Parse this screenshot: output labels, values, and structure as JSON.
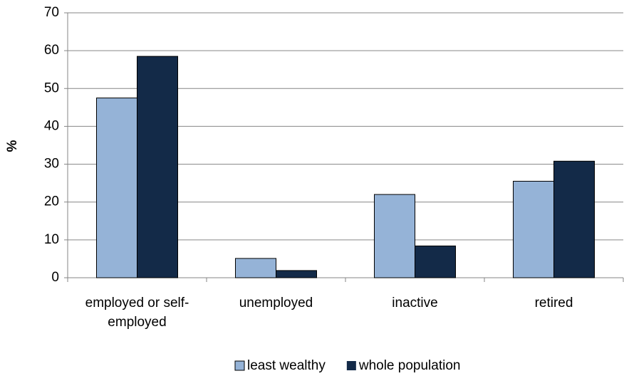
{
  "chart_data": {
    "type": "bar",
    "y_label": "%",
    "categories": [
      "employed or self-employed",
      "unemployed",
      "inactive",
      "retired"
    ],
    "series": [
      {
        "name": "least wealthy",
        "color": "#95b3d7",
        "values": [
          47.5,
          5.1,
          22,
          25.5
        ]
      },
      {
        "name": "whole population",
        "color": "#132a48",
        "values": [
          58.5,
          1.9,
          8.4,
          30.8
        ]
      }
    ],
    "ylim": [
      0,
      70
    ],
    "yticks": [
      0,
      10,
      20,
      30,
      40,
      50,
      60,
      70
    ],
    "grid": true
  }
}
